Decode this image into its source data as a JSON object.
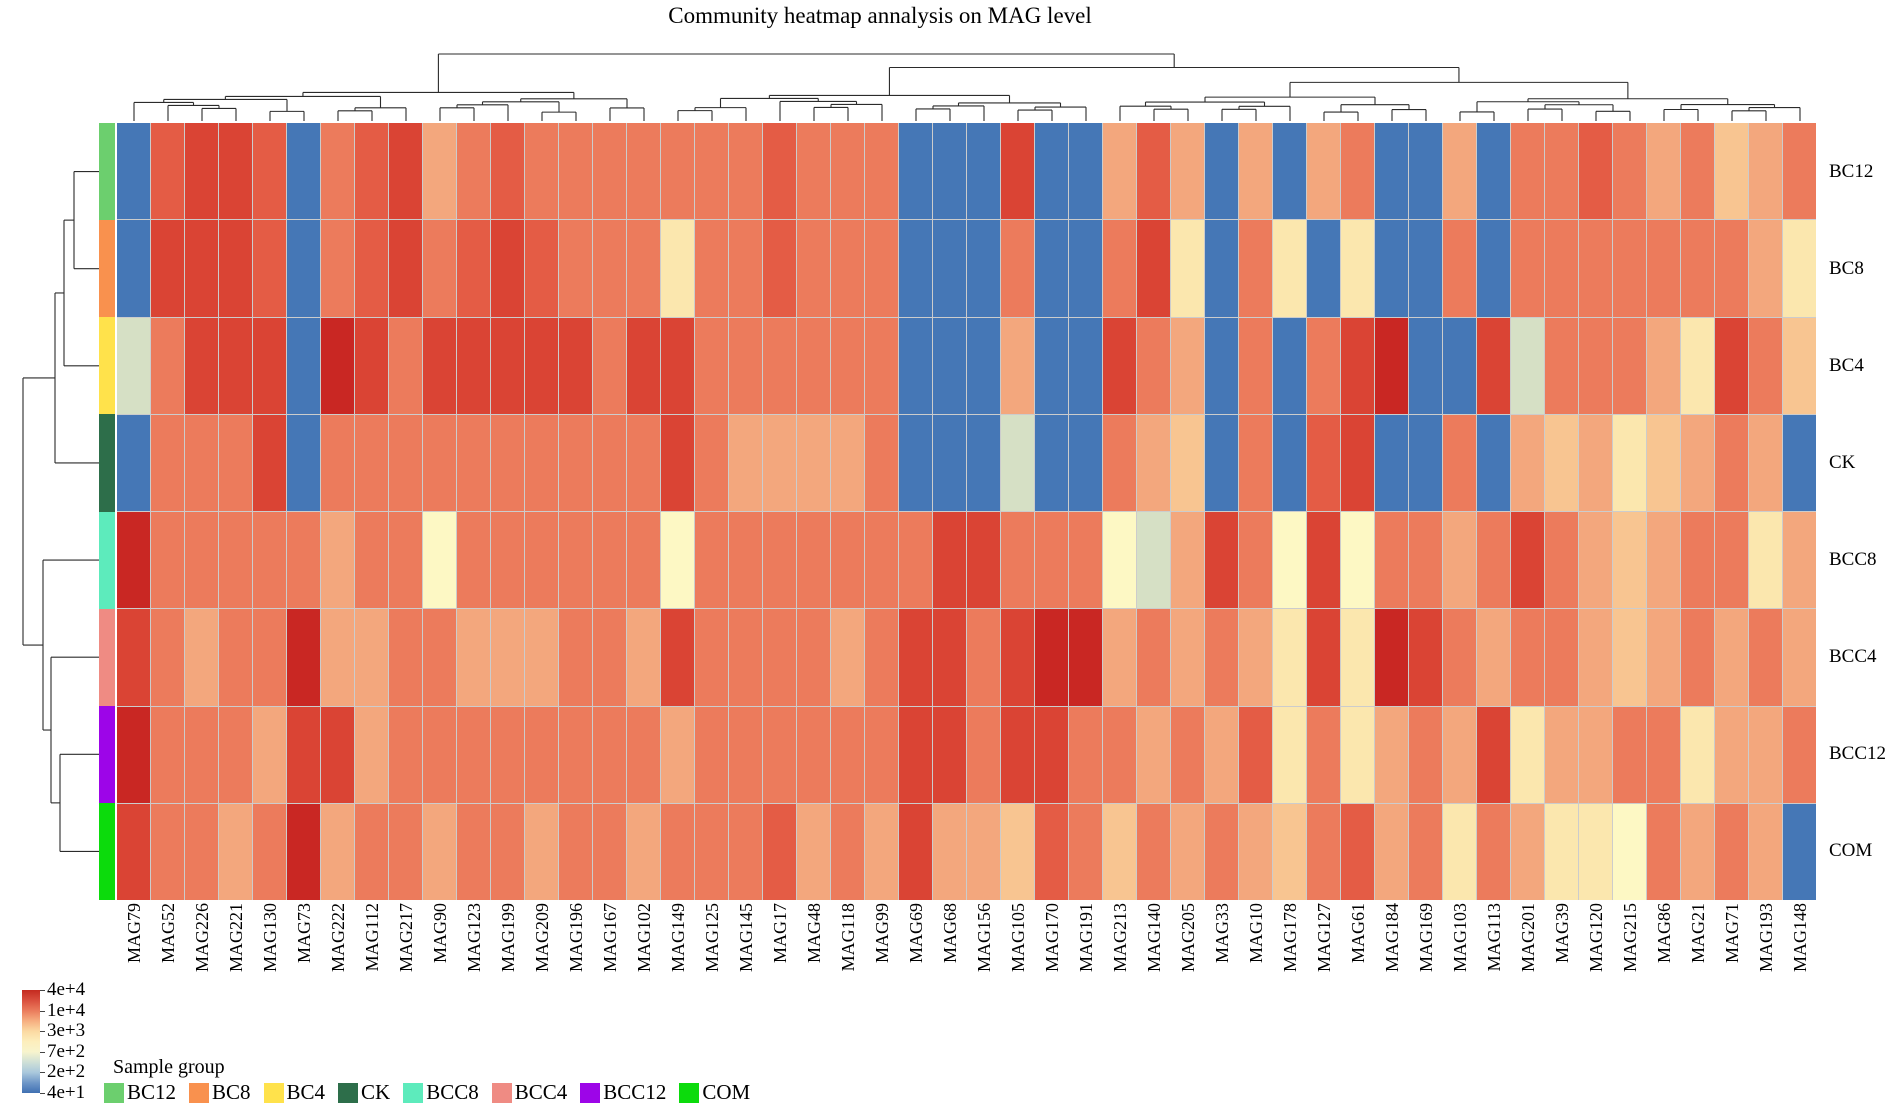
{
  "title": "Community heatmap annalysis on MAG level",
  "chart_data": {
    "type": "heatmap",
    "title": "Community heatmap annalysis on MAG level",
    "columns": [
      "MAG79",
      "MAG52",
      "MAG226",
      "MAG221",
      "MAG130",
      "MAG73",
      "MAG222",
      "MAG112",
      "MAG217",
      "MAG90",
      "MAG123",
      "MAG199",
      "MAG209",
      "MAG196",
      "MAG167",
      "MAG102",
      "MAG149",
      "MAG125",
      "MAG145",
      "MAG17",
      "MAG48",
      "MAG118",
      "MAG99",
      "MAG69",
      "MAG68",
      "MAG156",
      "MAG105",
      "MAG170",
      "MAG191",
      "MAG213",
      "MAG140",
      "MAG205",
      "MAG33",
      "MAG10",
      "MAG178",
      "MAG127",
      "MAG61",
      "MAG184",
      "MAG169",
      "MAG103",
      "MAG113",
      "MAG201",
      "MAG39",
      "MAG120",
      "MAG215",
      "MAG86",
      "MAG21",
      "MAG71",
      "MAG193",
      "MAG148"
    ],
    "rows": [
      "BC12",
      "BC8",
      "BC4",
      "CK",
      "BCC8",
      "BCC4",
      "BCC12",
      "COM"
    ],
    "matrix_encoding": "one letter per cell; palette maps letter to color and approximate abundance value",
    "palette": {
      "B": {
        "color": "#4577b6",
        "value": 40
      },
      "g": {
        "color": "#d6e0c5",
        "value": 700
      },
      "y": {
        "color": "#fdf8c4",
        "value": 900
      },
      "c": {
        "color": "#fbe7ae",
        "value": 1800
      },
      "p": {
        "color": "#f8c591",
        "value": 3000
      },
      "P": {
        "color": "#f3a77d",
        "value": 5500
      },
      "s": {
        "color": "#ec7b5c",
        "value": 10000
      },
      "S": {
        "color": "#e45c45",
        "value": 16000
      },
      "r": {
        "color": "#da4434",
        "value": 26000
      },
      "R": {
        "color": "#c92723",
        "value": 40000
      }
    },
    "matrix": [
      "BSrrSBsSrPsSsssssssSsssBBBrBBPSPBPBPsBBPBssSsPspPs",
      "BrrrSBsSrsSrSssscssSsssBBBsBBsrcBscBcBBsBsssssssPc",
      "gsrrrBRrsrrrrrsrrssssssBBBPBBrsPBsBsrRBBrgsssPcrsp",
      "BsssrBssssssssssrsPPPPsBBBgBBsPpBsBSrBBsBPpPcpPsPB",
      "RsssssPssyssssssysssssssrrsssygPrsyryssPsrsPpPsscP",
      "rsPssRPPssPPPssPrssssPsrrsrRRPsPsPcrcRrsPssPpPsPsP",
      "RsssPrrPssssssssPssssssrrsrrssPsPScscPsPrcPPsscPPs",
      "rssPsRPssPssPssPsssSPsPrPPpSspsPsPpsSPscsPccysPsPB"
    ],
    "colorbar": {
      "ticks": [
        "4e+4",
        "1e+4",
        "3e+3",
        "7e+2",
        "2e+2",
        "4e+1"
      ],
      "gradient_top_to_bottom": [
        "#c42a20",
        "#d94f3e",
        "#ea7b5c",
        "#f6ae80",
        "#fbd9a2",
        "#fdeebc",
        "#f8f4cd",
        "#cfe0d6",
        "#aac8dc",
        "#6f97c8",
        "#4070b2"
      ],
      "orientation": "vertical",
      "scale": "log"
    },
    "legend": {
      "title": "Sample group",
      "items": [
        {
          "label": "BC12",
          "color": "#6ccf6e"
        },
        {
          "label": "BC8",
          "color": "#f9914e"
        },
        {
          "label": "BC4",
          "color": "#ffe24b"
        },
        {
          "label": "CK",
          "color": "#2d6e4a"
        },
        {
          "label": "BCC8",
          "color": "#5debbc"
        },
        {
          "label": "BCC4",
          "color": "#ef8b83"
        },
        {
          "label": "BCC12",
          "color": "#9d05e8"
        },
        {
          "label": "COM",
          "color": "#0cdb0c"
        }
      ]
    },
    "layout_hints": {
      "row_dendrogram": "left",
      "column_dendrogram": "top",
      "row_labels_position": "right",
      "column_labels_position": "bottom, rotated 90 (reading bottom-to-top)",
      "gridlines": "thin light gray between cells"
    }
  }
}
